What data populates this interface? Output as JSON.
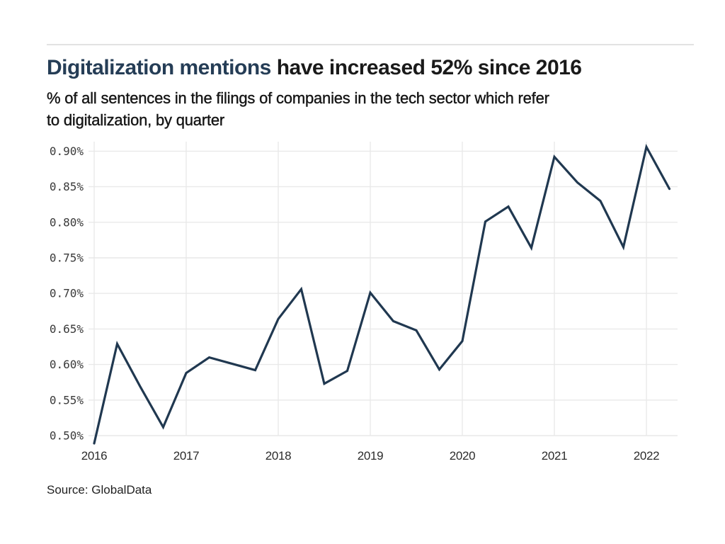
{
  "header": {
    "title_highlight": "Digitalization mentions",
    "title_rest": " have increased 52% since 2016",
    "subtitle_line1": "% of all sentences in the filings of companies in the tech sector which refer",
    "subtitle_line2": "to digitalization, by quarter"
  },
  "footer": {
    "source": "Source: GlobalData"
  },
  "colors": {
    "accent_title": "#253d56",
    "line": "#203850",
    "grid": "#e9e9e9",
    "divider": "#e2e2e2",
    "tick_text": "#3a3a3a",
    "text": "#1a1a1a"
  },
  "chart_data": {
    "type": "line",
    "title": "Digitalization mentions have increased 52% since 2016",
    "subtitle": "% of all sentences in the filings of companies in the tech sector which refer to digitalization, by quarter",
    "source": "Source: GlobalData",
    "x_unit": "quarter",
    "x": [
      "2016-Q1",
      "2016-Q2",
      "2016-Q3",
      "2016-Q4",
      "2017-Q1",
      "2017-Q2",
      "2017-Q3",
      "2017-Q4",
      "2018-Q1",
      "2018-Q2",
      "2018-Q3",
      "2018-Q4",
      "2019-Q1",
      "2019-Q2",
      "2019-Q3",
      "2019-Q4",
      "2020-Q1",
      "2020-Q2",
      "2020-Q3",
      "2020-Q4",
      "2021-Q1",
      "2021-Q2",
      "2021-Q3",
      "2021-Q4",
      "2022-Q1",
      "2022-Q2"
    ],
    "values": [
      0.489,
      0.629,
      0.569,
      0.512,
      0.588,
      0.61,
      0.601,
      0.592,
      0.664,
      0.706,
      0.573,
      0.591,
      0.701,
      0.661,
      0.648,
      0.593,
      0.633,
      0.801,
      0.822,
      0.764,
      0.892,
      0.856,
      0.83,
      0.765,
      0.906,
      0.847
    ],
    "value_format": "percent",
    "ylim": [
      0.479,
      0.918
    ],
    "grid": true,
    "legend": false,
    "y_ticks": [
      {
        "label": "0.90%",
        "value": 0.9
      },
      {
        "label": "0.85%",
        "value": 0.85
      },
      {
        "label": "0.80%",
        "value": 0.8
      },
      {
        "label": "0.75%",
        "value": 0.75
      },
      {
        "label": "0.70%",
        "value": 0.7
      },
      {
        "label": "0.65%",
        "value": 0.65
      },
      {
        "label": "0.60%",
        "value": 0.6
      },
      {
        "label": "0.55%",
        "value": 0.55
      },
      {
        "label": "0.50%",
        "value": 0.5
      }
    ],
    "x_ticks": [
      {
        "label": "2016",
        "quarter_index": 0
      },
      {
        "label": "2017",
        "quarter_index": 4
      },
      {
        "label": "2018",
        "quarter_index": 8
      },
      {
        "label": "2019",
        "quarter_index": 12
      },
      {
        "label": "2020",
        "quarter_index": 16
      },
      {
        "label": "2021",
        "quarter_index": 20
      },
      {
        "label": "2022",
        "quarter_index": 24
      }
    ]
  }
}
